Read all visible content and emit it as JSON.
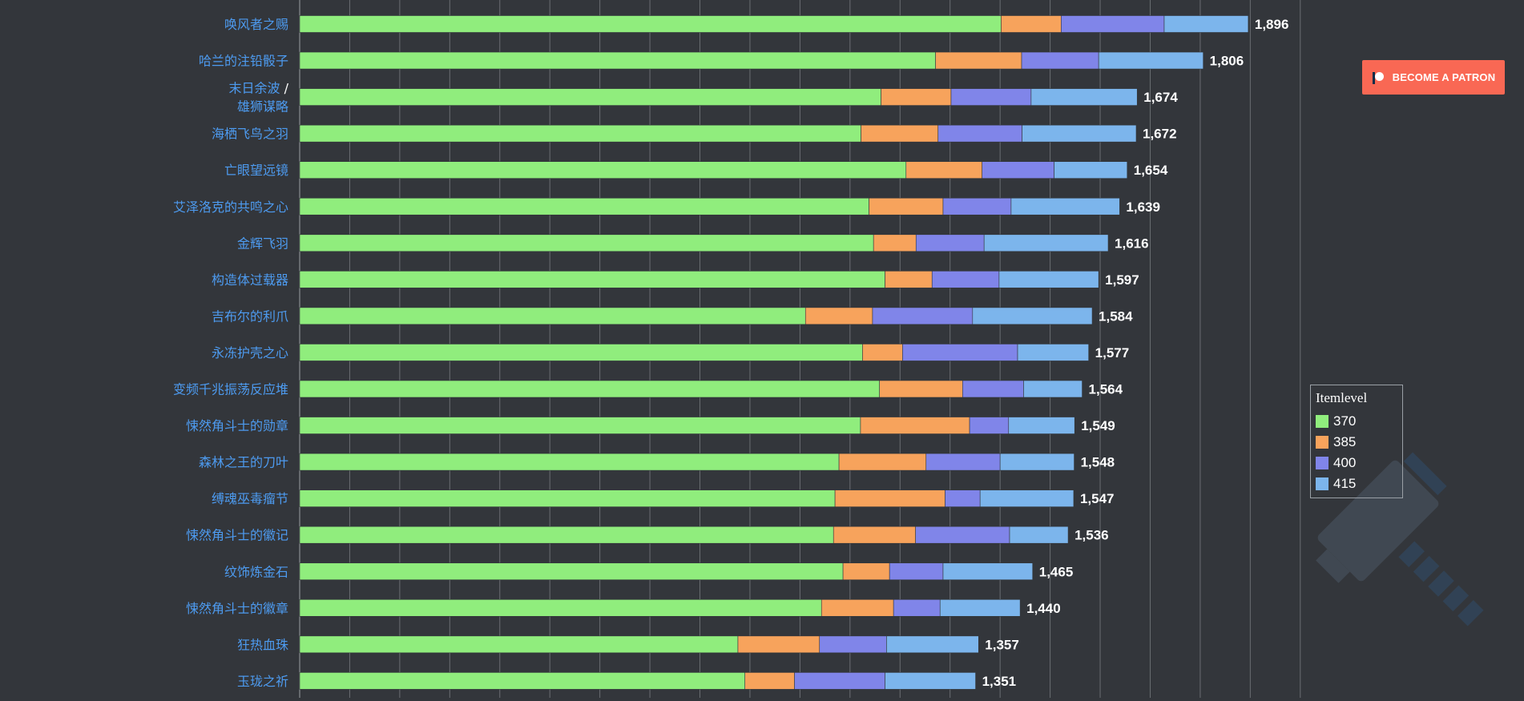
{
  "chart_data": {
    "type": "bar",
    "orientation": "horizontal",
    "stacked": true,
    "categories": [
      "唤风者之赐",
      "哈兰的注铅骰子",
      "末日余波 / 雄狮谋略",
      "海栖飞鸟之羽",
      "亡眼望远镜",
      "艾泽洛克的共鸣之心",
      "金辉飞羽",
      "构造体过载器",
      "吉布尔的利爪",
      "永冻护壳之心",
      "变频千兆振荡反应堆",
      "悚然角斗士的勋章",
      "森林之王的刀叶",
      "缚魂巫毒瘤节",
      "悚然角斗士的徽记",
      "纹饰炼金石",
      "悚然角斗士的徽章",
      "狂热血珠",
      "玉珑之祈"
    ],
    "category_lines": [
      [
        "唤风者之赐"
      ],
      [
        "哈兰的注铅骰子"
      ],
      [
        "末日余波 /",
        "雄狮谋略"
      ],
      [
        "海栖飞鸟之羽"
      ],
      [
        "亡眼望远镜"
      ],
      [
        "艾泽洛克的共鸣之心"
      ],
      [
        "金辉飞羽"
      ],
      [
        "构造体过载器"
      ],
      [
        "吉布尔的利爪"
      ],
      [
        "永冻护壳之心"
      ],
      [
        "变频千兆振荡反应堆"
      ],
      [
        "悚然角斗士的勋章"
      ],
      [
        "森林之王的刀叶"
      ],
      [
        "缚魂巫毒瘤节"
      ],
      [
        "悚然角斗士的徽记"
      ],
      [
        "纹饰炼金石"
      ],
      [
        "悚然角斗士的徽章"
      ],
      [
        "狂热血珠"
      ],
      [
        "玉珑之祈"
      ]
    ],
    "legend_title": "Itemlevel",
    "series": [
      {
        "name": "370",
        "color": "#90ed7d",
        "values": [
          1402,
          1271,
          1162,
          1122,
          1212,
          1138,
          1147,
          1170,
          1011,
          1125,
          1159,
          1121,
          1078,
          1070,
          1067,
          1086,
          1043,
          876,
          890
        ]
      },
      {
        "name": "385",
        "color": "#f7a35c",
        "values": [
          120,
          172,
          140,
          154,
          152,
          148,
          85,
          94,
          134,
          80,
          166,
          218,
          174,
          220,
          164,
          93,
          144,
          163,
          99
        ]
      },
      {
        "name": "400",
        "color": "#8085e9",
        "values": [
          206,
          154,
          160,
          168,
          144,
          136,
          136,
          134,
          200,
          230,
          122,
          78,
          148,
          70,
          188,
          107,
          93,
          134,
          181
        ]
      },
      {
        "name": "415",
        "color": "#7cb5ec",
        "values": [
          168,
          209,
          212,
          228,
          146,
          217,
          248,
          199,
          239,
          142,
          117,
          132,
          148,
          187,
          117,
          179,
          160,
          184,
          181
        ]
      }
    ],
    "totals": [
      "1,896",
      "1,806",
      "1,674",
      "1,672",
      "1,654",
      "1,639",
      "1,616",
      "1,597",
      "1,584",
      "1,577",
      "1,564",
      "1,549",
      "1,548",
      "1,547",
      "1,536",
      "1,465",
      "1,440",
      "1,357",
      "1,351"
    ],
    "xlim": [
      0,
      2000
    ],
    "grid": true,
    "legend_position": "right",
    "colors": {
      "background": "#33363b",
      "category_label": "#4d9bf0",
      "total_label": "#ffffff",
      "gridline": "#6a6d72"
    }
  },
  "patreon": {
    "label": "BECOME A PATRON",
    "color": "#f96854"
  }
}
